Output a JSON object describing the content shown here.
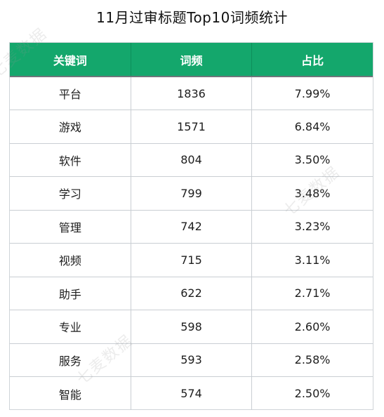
{
  "title": "11月过审标题Top10词频统计",
  "columns": [
    "关键词",
    "词频",
    "占比"
  ],
  "rows": [
    {
      "keyword": "平台",
      "freq": "1836",
      "pct": "7.99%"
    },
    {
      "keyword": "游戏",
      "freq": "1571",
      "pct": "6.84%"
    },
    {
      "keyword": "软件",
      "freq": "804",
      "pct": "3.50%"
    },
    {
      "keyword": "学习",
      "freq": "799",
      "pct": "3.48%"
    },
    {
      "keyword": "管理",
      "freq": "742",
      "pct": "3.23%"
    },
    {
      "keyword": "视频",
      "freq": "715",
      "pct": "3.11%"
    },
    {
      "keyword": "助手",
      "freq": "622",
      "pct": "2.71%"
    },
    {
      "keyword": "专业",
      "freq": "598",
      "pct": "2.60%"
    },
    {
      "keyword": "服务",
      "freq": "593",
      "pct": "2.58%"
    },
    {
      "keyword": "智能",
      "freq": "574",
      "pct": "2.50%"
    }
  ],
  "watermark": "七麦数据",
  "colors": {
    "header_bg": "#14a76c",
    "header_text": "#ffffff",
    "grid": "#c9ced3"
  }
}
